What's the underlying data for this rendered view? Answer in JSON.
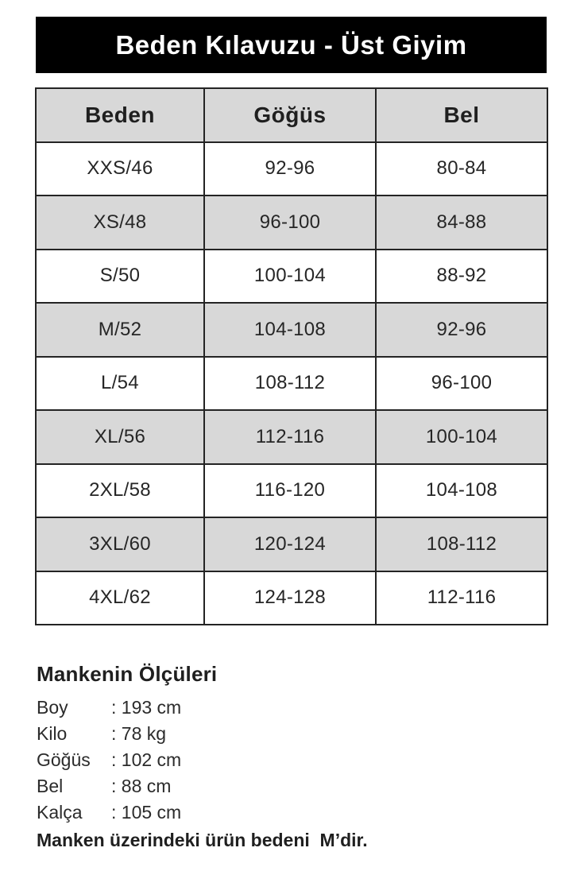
{
  "banner": {
    "title": "Beden Kılavuzu - Üst Giyim"
  },
  "table": {
    "headers": [
      "Beden",
      "Göğüs",
      "Bel"
    ],
    "rows": [
      {
        "size": "XXS/46",
        "chest": "92-96",
        "waist": "80-84"
      },
      {
        "size": "XS/48",
        "chest": "96-100",
        "waist": "84-88"
      },
      {
        "size": "S/50",
        "chest": "100-104",
        "waist": "88-92"
      },
      {
        "size": "M/52",
        "chest": "104-108",
        "waist": "92-96"
      },
      {
        "size": "L/54",
        "chest": "108-112",
        "waist": "96-100"
      },
      {
        "size": "XL/56",
        "chest": "112-116",
        "waist": "100-104"
      },
      {
        "size": "2XL/58",
        "chest": "116-120",
        "waist": "104-108"
      },
      {
        "size": "3XL/60",
        "chest": "120-124",
        "waist": "108-112"
      },
      {
        "size": "4XL/62",
        "chest": "124-128",
        "waist": "112-116"
      }
    ]
  },
  "model": {
    "heading": "Mankenin Ölçüleri",
    "measurements": [
      {
        "label": "Boy",
        "value": ": 193 cm"
      },
      {
        "label": "Kilo",
        "value": ": 78 kg"
      },
      {
        "label": "Göğüs",
        "value": ": 102 cm"
      },
      {
        "label": "Bel",
        "value": ": 88 cm"
      },
      {
        "label": "Kalça",
        "value": ": 105 cm"
      }
    ],
    "note": "Manken üzerindeki ürün bedeni  M’dir."
  },
  "colors": {
    "banner_bg": "#000000",
    "banner_text": "#ffffff",
    "stripe_bg": "#d8d8d8",
    "border": "#242424",
    "text": "#262626"
  },
  "chart_data": {
    "type": "table",
    "title": "Beden Kılavuzu - Üst Giyim",
    "columns": [
      "Beden",
      "Göğüs",
      "Bel"
    ],
    "rows": [
      [
        "XXS/46",
        "92-96",
        "80-84"
      ],
      [
        "XS/48",
        "96-100",
        "84-88"
      ],
      [
        "S/50",
        "100-104",
        "88-92"
      ],
      [
        "M/52",
        "104-108",
        "92-96"
      ],
      [
        "L/54",
        "108-112",
        "96-100"
      ],
      [
        "XL/56",
        "112-116",
        "100-104"
      ],
      [
        "2XL/58",
        "116-120",
        "104-108"
      ],
      [
        "3XL/60",
        "120-124",
        "108-112"
      ],
      [
        "4XL/62",
        "124-128",
        "112-116"
      ]
    ],
    "layout_hints": {
      "header_background": "#d8d8d8",
      "striped_rows": true,
      "units": "cm"
    }
  }
}
